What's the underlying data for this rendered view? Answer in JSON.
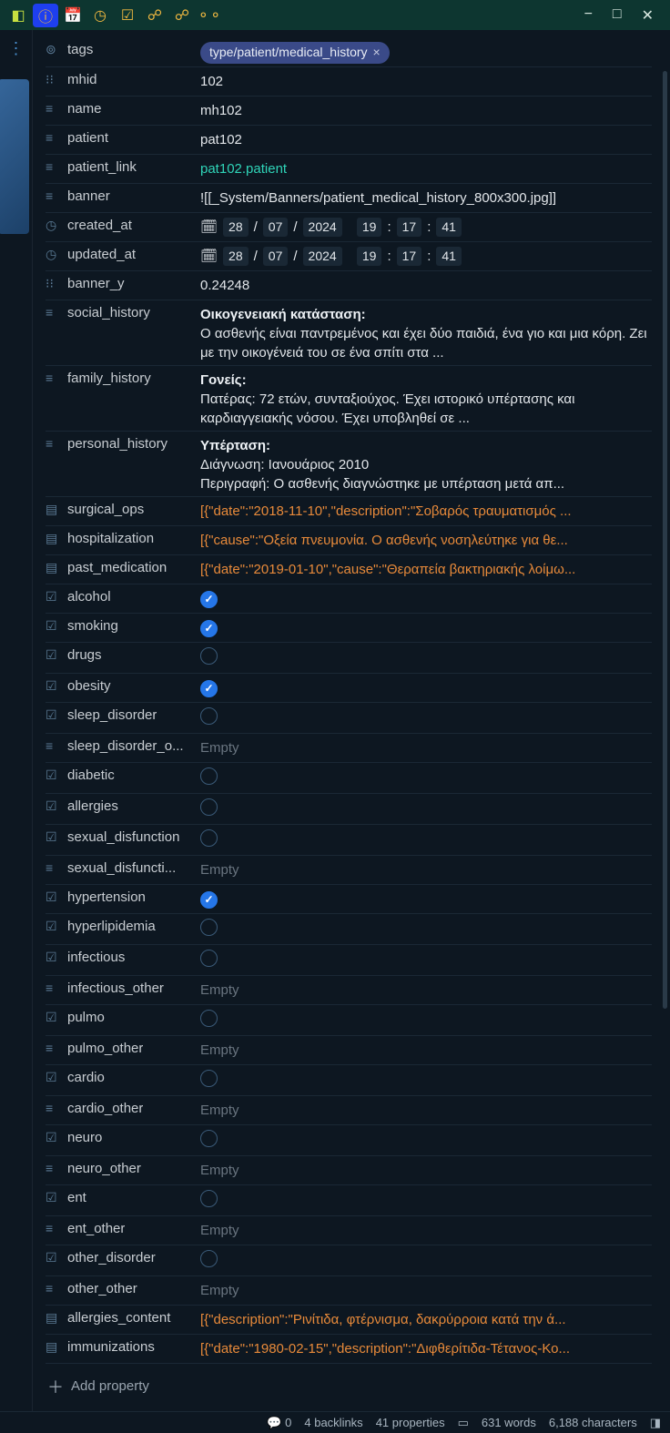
{
  "titlebar": {
    "window_controls": {
      "min": "−",
      "max": "□",
      "close": "✕"
    }
  },
  "tag": {
    "label": "type/patient/medical_history"
  },
  "props": {
    "tags": "tags",
    "mhid": {
      "k": "mhid",
      "v": "102"
    },
    "name": {
      "k": "name",
      "v": "mh102"
    },
    "patient": {
      "k": "patient",
      "v": "pat102"
    },
    "patient_link": {
      "k": "patient_link",
      "v": "pat102.patient"
    },
    "banner": {
      "k": "banner",
      "v": "![[_System/Banners/patient_medical_history_800x300.jpg]]"
    },
    "created_at": {
      "k": "created_at",
      "d": "28",
      "m": "07",
      "y": "2024",
      "h": "19",
      "mi": "17",
      "s": "41"
    },
    "updated_at": {
      "k": "updated_at",
      "d": "28",
      "m": "07",
      "y": "2024",
      "h": "19",
      "mi": "17",
      "s": "41"
    },
    "banner_y": {
      "k": "banner_y",
      "v": "0.24248"
    },
    "social_history": {
      "k": "social_history",
      "t1": "Οικογενειακή κατάσταση:",
      "t2": "Ο ασθενής είναι παντρεμένος και έχει δύο παιδιά, ένα γιο και μια κόρη. Ζει με την οικογένειά του σε ένα σπίτι στα ..."
    },
    "family_history": {
      "k": "family_history",
      "t1": "Γονείς:",
      "t2": "Πατέρας: 72 ετών, συνταξιούχος. Έχει ιστορικό υπέρτασης και καρδιαγγειακής νόσου. Έχει υποβληθεί σε ..."
    },
    "personal_history": {
      "k": "personal_history",
      "t1": "Υπέρταση:",
      "t2": "Διάγνωση: Ιανουάριος 2010",
      "t3": "Περιγραφή: Ο ασθενής διαγνώστηκε με υπέρταση μετά απ..."
    },
    "surgical_ops": {
      "k": "surgical_ops",
      "v": "[{\"date\":\"2018-11-10\",\"description\":\"Σοβαρός τραυματισμός ..."
    },
    "hospitalization": {
      "k": "hospitalization",
      "v": "[{\"cause\":\"Οξεία πνευμονία. Ο ασθενής νοσηλεύτηκε για θε..."
    },
    "past_medication": {
      "k": "past_medication",
      "v": "[{\"date\":\"2019-01-10\",\"cause\":\"Θεραπεία βακτηριακής λοίμω..."
    },
    "alcohol": {
      "k": "alcohol",
      "v": true
    },
    "smoking": {
      "k": "smoking",
      "v": true
    },
    "drugs": {
      "k": "drugs",
      "v": false
    },
    "obesity": {
      "k": "obesity",
      "v": true
    },
    "sleep_disorder": {
      "k": "sleep_disorder",
      "v": false
    },
    "sleep_disorder_other": {
      "k": "sleep_disorder_o...",
      "v": "Empty"
    },
    "diabetic": {
      "k": "diabetic",
      "v": false
    },
    "allergies": {
      "k": "allergies",
      "v": false
    },
    "sexual_disfunction": {
      "k": "sexual_disfunction",
      "v": false
    },
    "sexual_disfunction_other": {
      "k": "sexual_disfuncti...",
      "v": "Empty"
    },
    "hypertension": {
      "k": "hypertension",
      "v": true
    },
    "hyperlipidemia": {
      "k": "hyperlipidemia",
      "v": false
    },
    "infectious": {
      "k": "infectious",
      "v": false
    },
    "infectious_other": {
      "k": "infectious_other",
      "v": "Empty"
    },
    "pulmo": {
      "k": "pulmo",
      "v": false
    },
    "pulmo_other": {
      "k": "pulmo_other",
      "v": "Empty"
    },
    "cardio": {
      "k": "cardio",
      "v": false
    },
    "cardio_other": {
      "k": "cardio_other",
      "v": "Empty"
    },
    "neuro": {
      "k": "neuro",
      "v": false
    },
    "neuro_other": {
      "k": "neuro_other",
      "v": "Empty"
    },
    "ent": {
      "k": "ent",
      "v": false
    },
    "ent_other": {
      "k": "ent_other",
      "v": "Empty"
    },
    "other_disorder": {
      "k": "other_disorder",
      "v": false
    },
    "other_other": {
      "k": "other_other",
      "v": "Empty"
    },
    "allergies_content": {
      "k": "allergies_content",
      "v": "[{\"description\":\"Ρινίτιδα, φτέρνισμα, δακρύρροια κατά την ά..."
    },
    "immunizations": {
      "k": "immunizations",
      "v": "[{\"date\":\"1980-02-15\",\"description\":\"Διφθερίτιδα-Τέτανος-Κο..."
    }
  },
  "add_property": "Add property",
  "status": {
    "comments": "0",
    "backlinks": "4 backlinks",
    "properties": "41 properties",
    "words": "631 words",
    "chars": "6,188 characters"
  }
}
